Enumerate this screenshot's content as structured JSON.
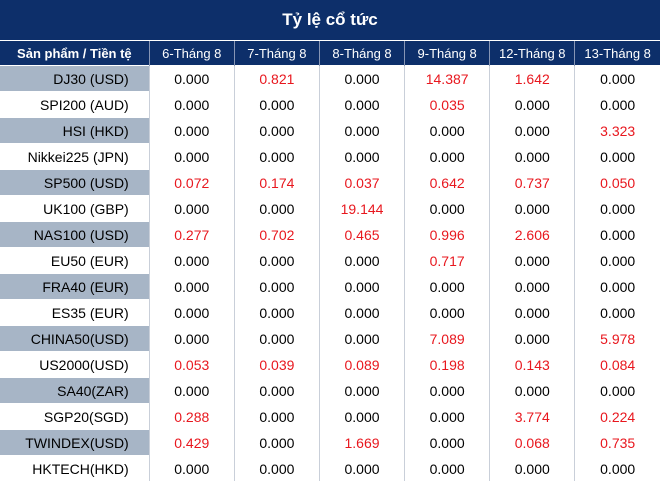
{
  "title": "Tỷ lệ cổ tức",
  "colors": {
    "header_bg": "#0d2f6a",
    "label_shade": "#a7b5c6",
    "positive_value": "#e8171e"
  },
  "table": {
    "headers": [
      "Sản phẩm / Tiền tệ",
      "6-Tháng 8",
      "7-Tháng 8",
      "8-Tháng 8",
      "9-Tháng 8",
      "12-Tháng 8",
      "13-Tháng 8"
    ],
    "rows": [
      {
        "label": "DJ30 (USD)",
        "values": [
          "0.000",
          "0.821",
          "0.000",
          "14.387",
          "1.642",
          "0.000"
        ]
      },
      {
        "label": "SPI200 (AUD)",
        "values": [
          "0.000",
          "0.000",
          "0.000",
          "0.035",
          "0.000",
          "0.000"
        ]
      },
      {
        "label": "HSI (HKD)",
        "values": [
          "0.000",
          "0.000",
          "0.000",
          "0.000",
          "0.000",
          "3.323"
        ]
      },
      {
        "label": "Nikkei225 (JPN)",
        "values": [
          "0.000",
          "0.000",
          "0.000",
          "0.000",
          "0.000",
          "0.000"
        ]
      },
      {
        "label": "SP500 (USD)",
        "values": [
          "0.072",
          "0.174",
          "0.037",
          "0.642",
          "0.737",
          "0.050"
        ]
      },
      {
        "label": "UK100 (GBP)",
        "values": [
          "0.000",
          "0.000",
          "19.144",
          "0.000",
          "0.000",
          "0.000"
        ]
      },
      {
        "label": "NAS100 (USD)",
        "values": [
          "0.277",
          "0.702",
          "0.465",
          "0.996",
          "2.606",
          "0.000"
        ]
      },
      {
        "label": "EU50 (EUR)",
        "values": [
          "0.000",
          "0.000",
          "0.000",
          "0.717",
          "0.000",
          "0.000"
        ]
      },
      {
        "label": "FRA40 (EUR)",
        "values": [
          "0.000",
          "0.000",
          "0.000",
          "0.000",
          "0.000",
          "0.000"
        ]
      },
      {
        "label": "ES35 (EUR)",
        "values": [
          "0.000",
          "0.000",
          "0.000",
          "0.000",
          "0.000",
          "0.000"
        ]
      },
      {
        "label": "CHINA50(USD)",
        "values": [
          "0.000",
          "0.000",
          "0.000",
          "7.089",
          "0.000",
          "5.978"
        ]
      },
      {
        "label": "US2000(USD)",
        "values": [
          "0.053",
          "0.039",
          "0.089",
          "0.198",
          "0.143",
          "0.084"
        ]
      },
      {
        "label": "SA40(ZAR)",
        "values": [
          "0.000",
          "0.000",
          "0.000",
          "0.000",
          "0.000",
          "0.000"
        ]
      },
      {
        "label": "SGP20(SGD)",
        "values": [
          "0.288",
          "0.000",
          "0.000",
          "0.000",
          "3.774",
          "0.224"
        ]
      },
      {
        "label": "TWINDEX(USD)",
        "values": [
          "0.429",
          "0.000",
          "1.669",
          "0.000",
          "0.068",
          "0.735"
        ]
      },
      {
        "label": "HKTECH(HKD)",
        "values": [
          "0.000",
          "0.000",
          "0.000",
          "0.000",
          "0.000",
          "0.000"
        ]
      }
    ]
  }
}
